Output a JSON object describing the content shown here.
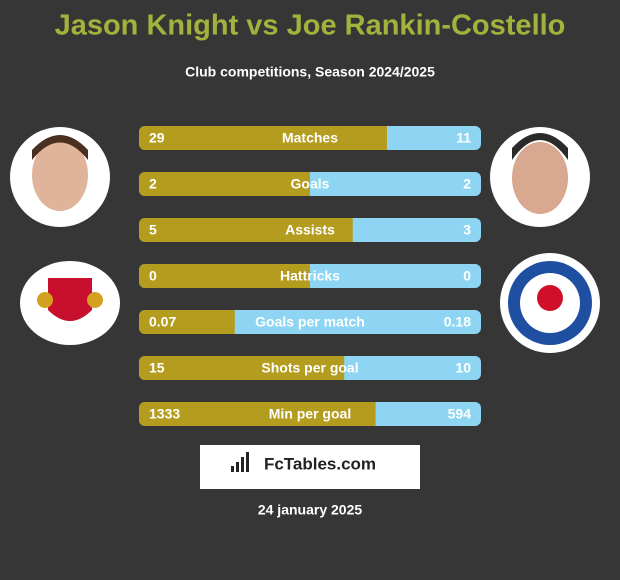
{
  "title": "Jason Knight vs Joe Rankin-Costello",
  "subtitle": "Club competitions, Season 2024/2025",
  "rows": [
    {
      "label": "Matches",
      "left": 29,
      "right": 11
    },
    {
      "label": "Goals",
      "left": 2,
      "right": 2
    },
    {
      "label": "Assists",
      "left": 5,
      "right": 3
    },
    {
      "label": "Hattricks",
      "left": 0,
      "right": 0
    },
    {
      "label": "Goals per match",
      "left": 0.07,
      "right": 0.18
    },
    {
      "label": "Shots per goal",
      "left": 15,
      "right": 10
    },
    {
      "label": "Min per goal",
      "left": 1333,
      "right": 594
    }
  ],
  "brand": "FcTables.com",
  "date": "24 january 2025"
}
